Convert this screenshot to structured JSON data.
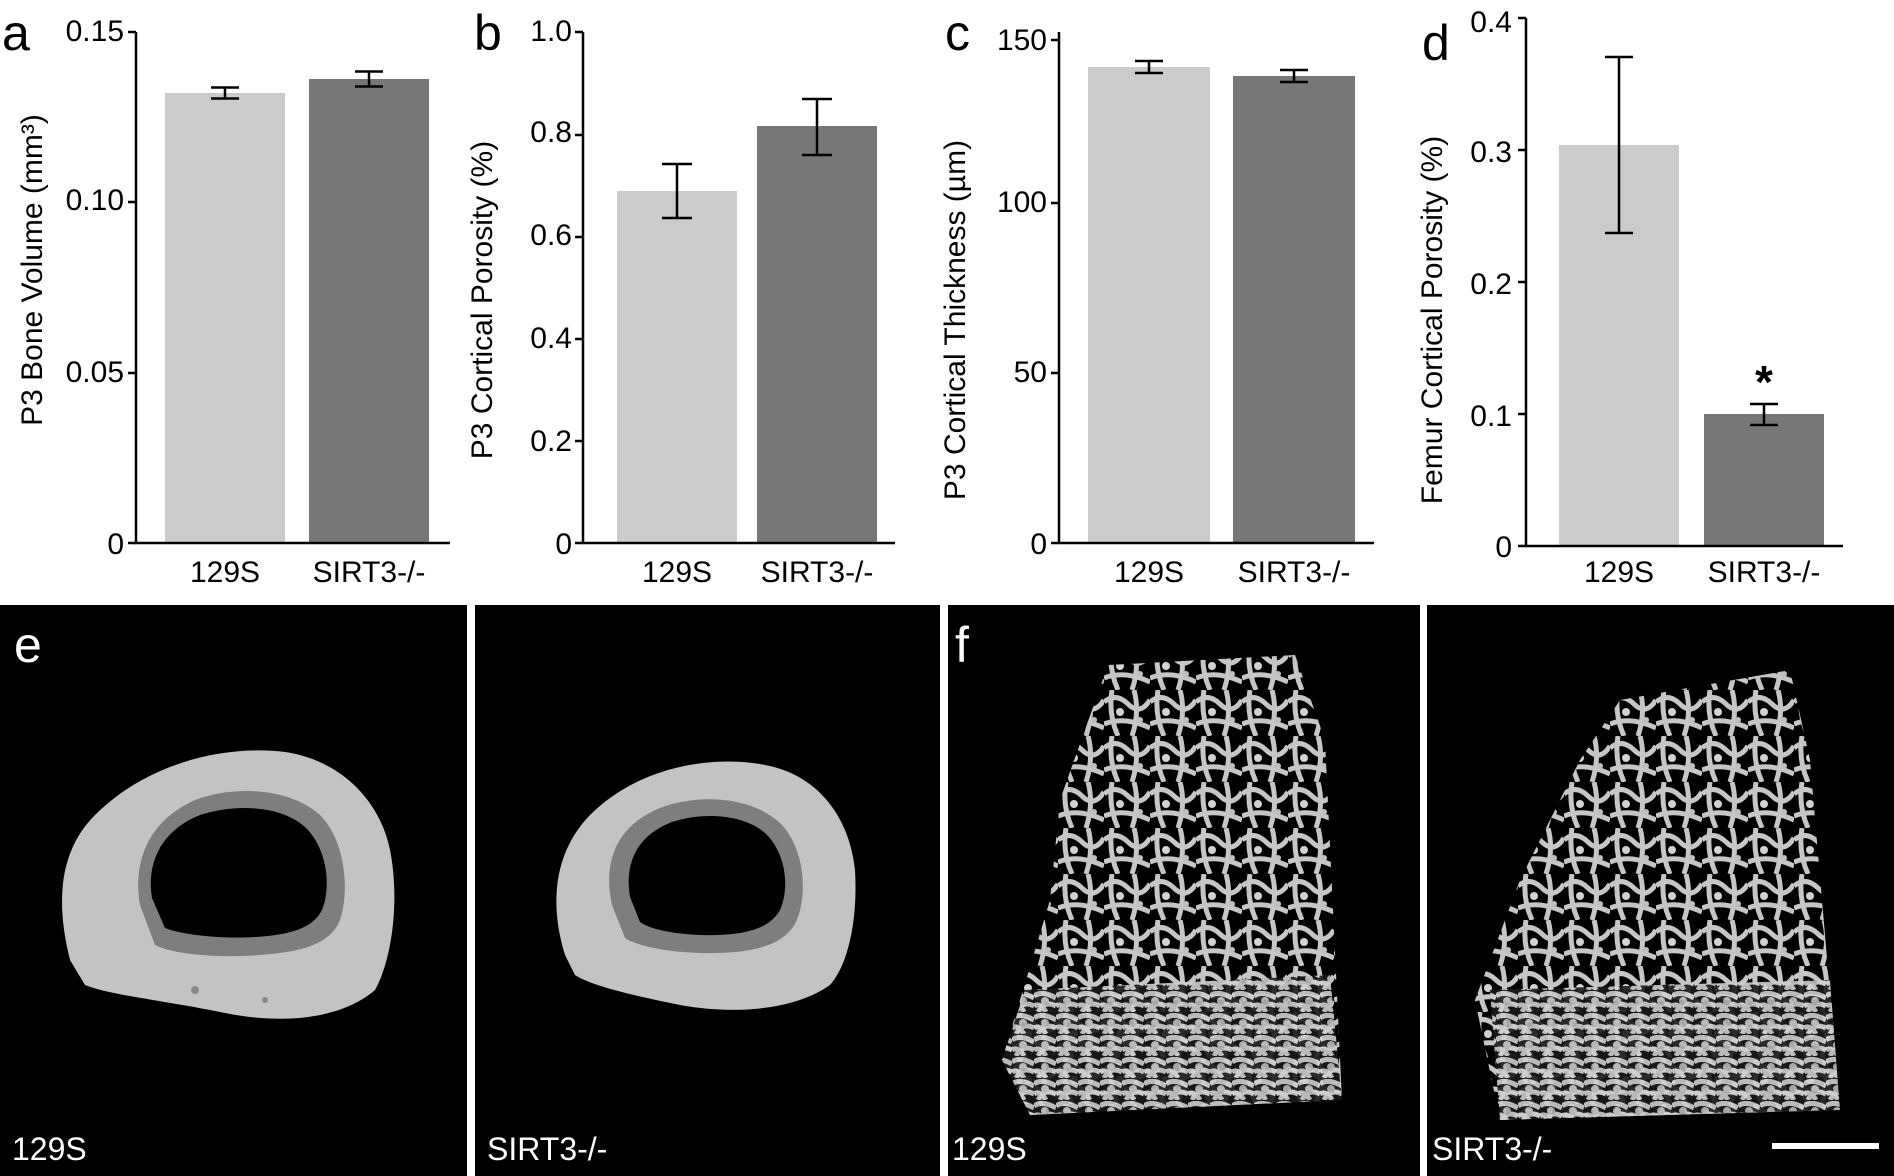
{
  "colors": {
    "bar_129S": "#cbcbcb",
    "bar_SIRT3": "#777777",
    "image_background": "#000000",
    "bone_light": "#c3c3c3",
    "bone_dark": "#7e7e7e",
    "label_text": "#ffffff"
  },
  "chart_data": [
    {
      "panel": "a",
      "type": "bar",
      "categories": [
        "129S",
        "SIRT3-/-"
      ],
      "values": [
        0.132,
        0.136
      ],
      "errors": [
        0.0015,
        0.002
      ],
      "ylabel": "P3 Bone Volume (mm³)",
      "ylim": [
        0,
        0.15
      ],
      "yticks": [
        "0",
        "0.05",
        "0.10",
        "0.15"
      ],
      "ytick_values": [
        0,
        0.05,
        0.1,
        0.15
      ],
      "significance": [
        "",
        ""
      ],
      "grid": false
    },
    {
      "panel": "b",
      "type": "bar",
      "categories": [
        "129S",
        "SIRT3-/-"
      ],
      "values": [
        0.69,
        0.815
      ],
      "errors": [
        0.053,
        0.055
      ],
      "ylabel": "P3 Cortical Porosity (%)",
      "ylim": [
        0,
        1.0
      ],
      "yticks": [
        "0",
        "0.2",
        "0.4",
        "0.6",
        "0.8",
        "1.0"
      ],
      "ytick_values": [
        0,
        0.2,
        0.4,
        0.6,
        0.8,
        1.0
      ],
      "significance": [
        "",
        ""
      ],
      "grid": false
    },
    {
      "panel": "c",
      "type": "bar",
      "categories": [
        "129S",
        "SIRT3-/-"
      ],
      "values": [
        141,
        138.5
      ],
      "errors": [
        1.8,
        1.8
      ],
      "ylabel": "P3 Cortical Thickness (µm)",
      "ylim": [
        0,
        150
      ],
      "yticks": [
        "0",
        "50",
        "100",
        "150"
      ],
      "ytick_values": [
        0,
        50,
        100,
        150
      ],
      "significance": [
        "",
        ""
      ],
      "grid": false
    },
    {
      "panel": "d",
      "type": "bar",
      "categories": [
        "129S",
        "SIRT3-/-"
      ],
      "values": [
        0.305,
        0.1
      ],
      "errors": [
        0.067,
        0.008
      ],
      "ylabel": "Femur Cortical Porosity (%)",
      "ylim": [
        0,
        0.4
      ],
      "yticks": [
        "0",
        "0.1",
        "0.2",
        "0.3",
        "0.4"
      ],
      "ytick_values": [
        0,
        0.1,
        0.2,
        0.3,
        0.4
      ],
      "significance": [
        "",
        "*"
      ],
      "grid": false
    }
  ],
  "images": {
    "e": {
      "letter": "e",
      "panels": [
        {
          "label": "129S",
          "content": "cortical-ring-129S"
        },
        {
          "label": "SIRT3-/-",
          "content": "cortical-ring-SIRT3"
        }
      ]
    },
    "f": {
      "letter": "f",
      "panels": [
        {
          "label": "129S",
          "content": "trabecular-129S"
        },
        {
          "label": "SIRT3-/-",
          "content": "trabecular-SIRT3"
        }
      ],
      "scale_bar": true
    }
  }
}
